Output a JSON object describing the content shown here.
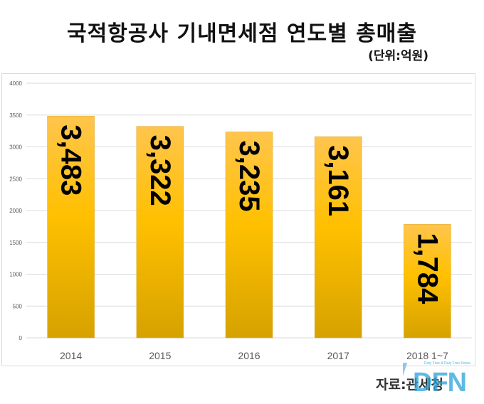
{
  "header": {
    "title": "국적항공사 기내면세점 연도별 총매출",
    "unit": "(단위:억원)"
  },
  "footer": {
    "source": "자료:관세청"
  },
  "logo": {
    "text": "DFN",
    "tagline": "Duty Free & Duty Free Korea",
    "color": "#29a3d9"
  },
  "colors": {
    "bar_top": "#ffc54d",
    "bar_mid": "#ffc000",
    "bar_bottom": "#d6a200",
    "grid": "#d9d9d9",
    "label": "#000000"
  },
  "chart_data": {
    "type": "bar",
    "categories": [
      "2014",
      "2015",
      "2016",
      "2017",
      "2018 1~7"
    ],
    "values": [
      3483,
      3322,
      3235,
      3161,
      1784
    ],
    "data_labels": [
      "3,483",
      "3,322",
      "3,235",
      "3,161",
      "1,784"
    ],
    "yticks": [
      "0",
      "500",
      "1000",
      "1500",
      "2000",
      "2500",
      "3000",
      "3500",
      "4000"
    ],
    "ylim": [
      0,
      4000
    ],
    "grid": true,
    "data_label_orientation": "vertical"
  }
}
